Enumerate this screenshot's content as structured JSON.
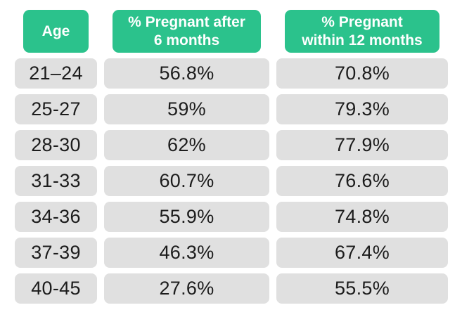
{
  "colors": {
    "header_bg": "#2BC28C",
    "header_text": "#FFFFFF",
    "row_bg": "#E0E0E0",
    "cell_text": "#1C1C1C",
    "page_bg": "#FFFFFF"
  },
  "table": {
    "headers": [
      {
        "line1": "Age",
        "line2": ""
      },
      {
        "line1": "% Pregnant after",
        "line2": "6 months"
      },
      {
        "line1": "% Pregnant",
        "line2": "within 12 months"
      }
    ],
    "rows": [
      [
        "21–24",
        "56.8%",
        "70.8%"
      ],
      [
        "25-27",
        "59%",
        "79.3%"
      ],
      [
        "28-30",
        "62%",
        "77.9%"
      ],
      [
        "31-33",
        "60.7%",
        "76.6%"
      ],
      [
        "34-36",
        "55.9%",
        "74.8%"
      ],
      [
        "37-39",
        "46.3%",
        "67.4%"
      ],
      [
        "40-45",
        "27.6%",
        "55.5%"
      ]
    ]
  },
  "chart_data": {
    "type": "table",
    "title": "",
    "columns": [
      "Age",
      "% Pregnant after 6 months",
      "% Pregnant within 12 months"
    ],
    "rows": [
      {
        "age": "21–24",
        "pregnant_6_months_pct": 56.8,
        "pregnant_12_months_pct": 70.8
      },
      {
        "age": "25-27",
        "pregnant_6_months_pct": 59.0,
        "pregnant_12_months_pct": 79.3
      },
      {
        "age": "28-30",
        "pregnant_6_months_pct": 62.0,
        "pregnant_12_months_pct": 77.9
      },
      {
        "age": "31-33",
        "pregnant_6_months_pct": 60.7,
        "pregnant_12_months_pct": 76.6
      },
      {
        "age": "34-36",
        "pregnant_6_months_pct": 55.9,
        "pregnant_12_months_pct": 74.8
      },
      {
        "age": "37-39",
        "pregnant_6_months_pct": 46.3,
        "pregnant_12_months_pct": 67.4
      },
      {
        "age": "40-45",
        "pregnant_6_months_pct": 27.6,
        "pregnant_12_months_pct": 55.5
      }
    ]
  }
}
